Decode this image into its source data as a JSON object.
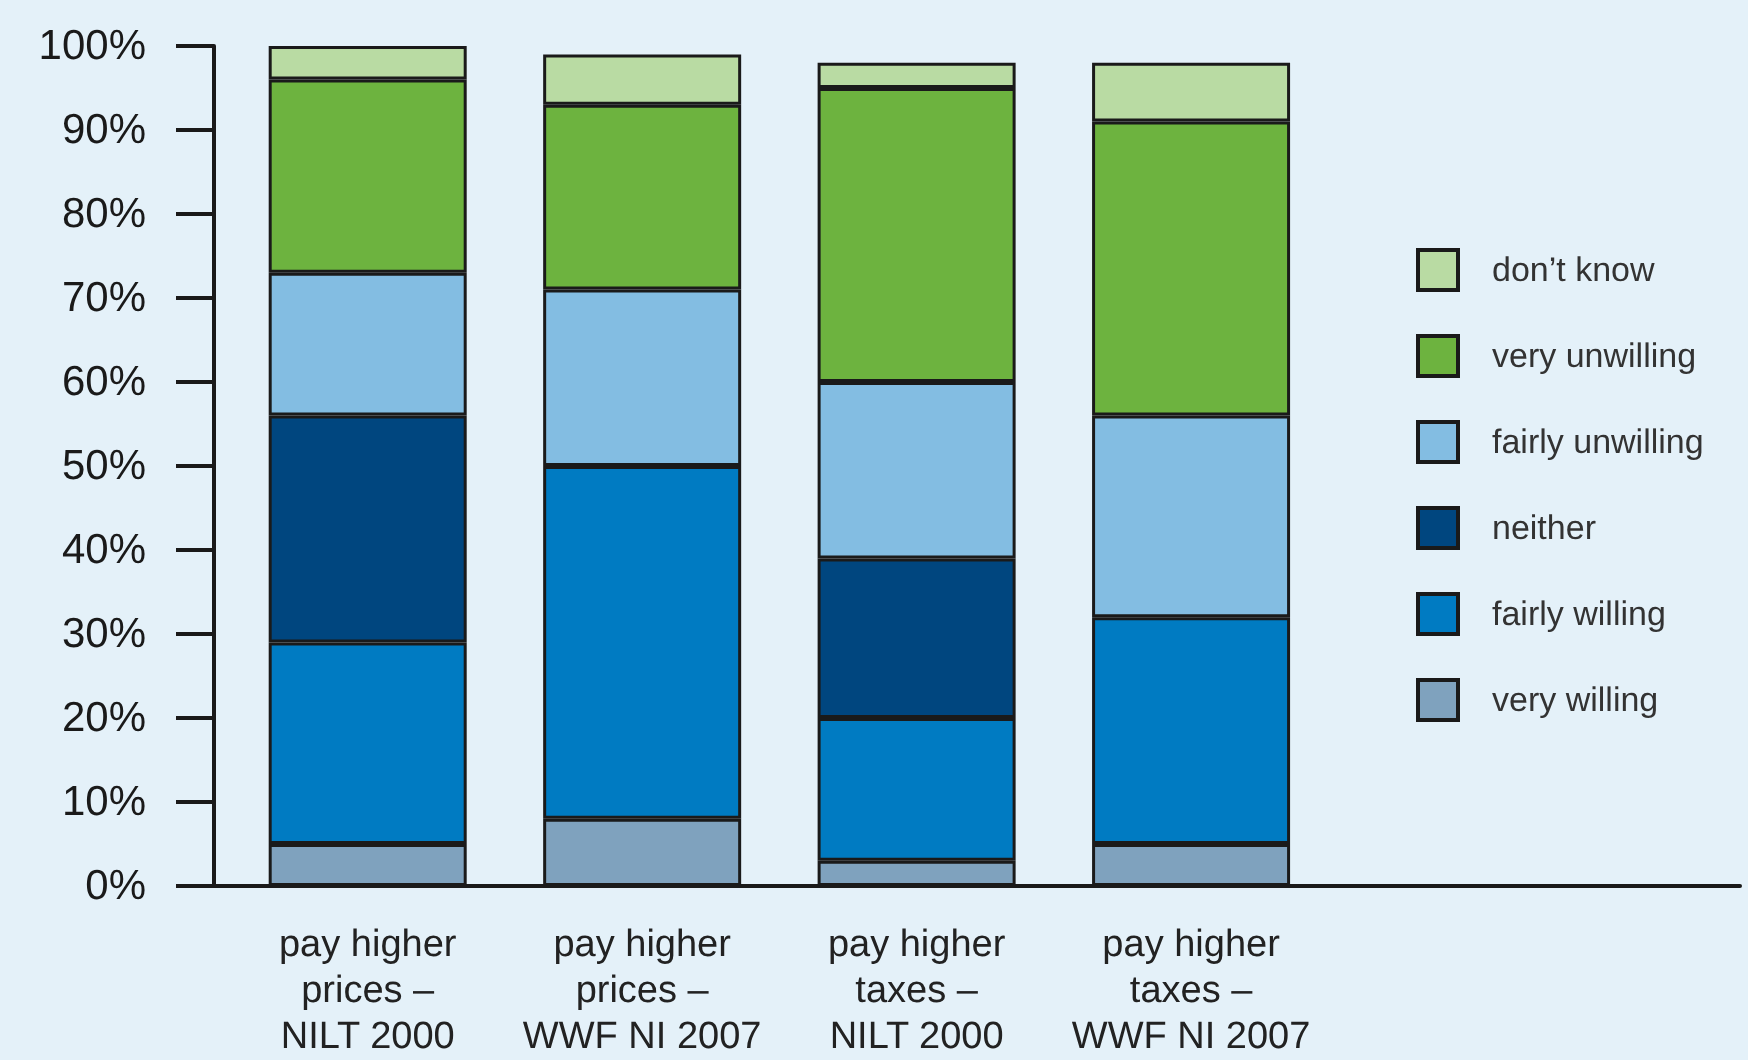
{
  "chart_data": {
    "type": "bar",
    "stacked": true,
    "categories": [
      "pay higher\nprices –\nNILT 2000",
      "pay higher\nprices –\nWWF NI 2007",
      "pay higher\ntaxes –\nNILT 2000",
      "pay higher\ntaxes –\nWWF NI 2007"
    ],
    "series": [
      {
        "name": "very willing",
        "color": "#7fa2be",
        "values": [
          5,
          8,
          3,
          5
        ]
      },
      {
        "name": "fairly willing",
        "color": "#007bc2",
        "values": [
          24,
          42,
          17,
          27
        ]
      },
      {
        "name": "neither",
        "color": "#00467f",
        "values": [
          27,
          null,
          19,
          null
        ]
      },
      {
        "name": "fairly unwilling",
        "color": "#83bde2",
        "values": [
          17,
          21,
          21,
          24
        ]
      },
      {
        "name": "very unwilling",
        "color": "#6db33f",
        "values": [
          23,
          22,
          35,
          35
        ]
      },
      {
        "name": "don’t know",
        "color": "#b9dba3",
        "values": [
          4,
          6,
          3,
          7
        ]
      }
    ],
    "ylim": [
      0,
      100
    ],
    "yticks": [
      {
        "value": 0,
        "label": "0%"
      },
      {
        "value": 10,
        "label": "10%"
      },
      {
        "value": 20,
        "label": "20%"
      },
      {
        "value": 30,
        "label": "30%"
      },
      {
        "value": 40,
        "label": "40%"
      },
      {
        "value": 50,
        "label": "50%"
      },
      {
        "value": 60,
        "label": "60%"
      },
      {
        "value": 70,
        "label": "70%"
      },
      {
        "value": 80,
        "label": "80%"
      },
      {
        "value": 90,
        "label": "90%"
      },
      {
        "value": 100,
        "label": "100%"
      }
    ],
    "legend": "right"
  }
}
